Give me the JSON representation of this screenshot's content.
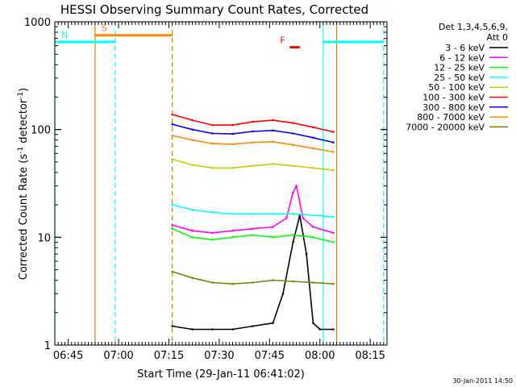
{
  "chart_data": {
    "type": "line",
    "title": "HESSI Observing Summary Count Rates, Corrected",
    "xlabel": "Start Time (29-Jan-11 06:41:02)",
    "ylabel": "Corrected Count Rate (s⁻¹ detector⁻¹)",
    "ylabel_main": "Corrected Count Rate (s",
    "ylabel_sup1": "-1",
    "ylabel_mid": " detector",
    "ylabel_sup2": "-1",
    "ylabel_end": ")",
    "yscale": "log",
    "ylim": [
      1,
      1000
    ],
    "xlim": [
      "06:41",
      "08:20"
    ],
    "x_ticks": [
      "06:45",
      "07:00",
      "07:15",
      "07:30",
      "07:45",
      "08:00",
      "08:15"
    ],
    "y_ticks": [
      "1",
      "10",
      "100",
      "1000"
    ],
    "legend": {
      "position": "right",
      "title_line1": "Det 1,3,4,5,6,9,",
      "title_line2": "Att 0"
    },
    "series": [
      {
        "name": "3 - 6 keV",
        "color": "#000000",
        "x": [
          "07:16",
          "07:22",
          "07:28",
          "07:34",
          "07:40",
          "07:46",
          "07:49",
          "07:52",
          "07:54",
          "07:56",
          "07:58",
          "08:00",
          "08:04"
        ],
        "y": [
          1.5,
          1.4,
          1.4,
          1.4,
          1.5,
          1.6,
          3,
          9,
          16,
          7,
          1.6,
          1.4,
          1.4
        ]
      },
      {
        "name": "6 - 12 keV",
        "color": "#ff00ff",
        "x": [
          "07:16",
          "07:22",
          "07:28",
          "07:34",
          "07:40",
          "07:46",
          "07:50",
          "07:52",
          "07:53",
          "07:55",
          "07:58",
          "08:04"
        ],
        "y": [
          13,
          11.5,
          11,
          11.5,
          12,
          12.5,
          15,
          26,
          30,
          15,
          12.5,
          11
        ]
      },
      {
        "name": "12 - 25 keV",
        "color": "#00ff00",
        "x": [
          "07:16",
          "07:22",
          "07:28",
          "07:34",
          "07:40",
          "07:46",
          "07:52",
          "07:58",
          "08:04"
        ],
        "y": [
          12,
          10,
          9.5,
          10,
          10.5,
          10,
          10.5,
          10,
          9
        ]
      },
      {
        "name": "25 - 50 keV",
        "color": "#00ffff",
        "x": [
          "07:16",
          "07:22",
          "07:28",
          "07:34",
          "07:40",
          "07:46",
          "07:52",
          "07:58",
          "08:04"
        ],
        "y": [
          20,
          18,
          17,
          16.5,
          16.5,
          16.5,
          16.5,
          16,
          15.5
        ]
      },
      {
        "name": "50 - 100 keV",
        "color": "#cccc00",
        "x": [
          "07:16",
          "07:22",
          "07:28",
          "07:34",
          "07:40",
          "07:46",
          "07:52",
          "07:58",
          "08:04"
        ],
        "y": [
          53,
          47,
          44,
          44,
          46,
          48,
          46,
          44,
          42
        ]
      },
      {
        "name": "100 - 300 keV",
        "color": "#ff0000",
        "x": [
          "07:16",
          "07:22",
          "07:28",
          "07:34",
          "07:40",
          "07:46",
          "07:52",
          "07:58",
          "08:04"
        ],
        "y": [
          138,
          122,
          110,
          110,
          118,
          122,
          115,
          105,
          95
        ]
      },
      {
        "name": "300 - 800 keV",
        "color": "#0000ff",
        "x": [
          "07:16",
          "07:22",
          "07:28",
          "07:34",
          "07:40",
          "07:46",
          "07:52",
          "07:58",
          "08:04"
        ],
        "y": [
          112,
          100,
          92,
          91,
          96,
          98,
          92,
          84,
          76
        ]
      },
      {
        "name": "800 - 7000 keV",
        "color": "#ff8800",
        "x": [
          "07:16",
          "07:22",
          "07:28",
          "07:34",
          "07:40",
          "07:46",
          "07:52",
          "07:58",
          "08:04"
        ],
        "y": [
          88,
          80,
          74,
          73,
          76,
          77,
          72,
          67,
          62
        ]
      },
      {
        "name": "7000 - 20000 keV",
        "color": "#808000",
        "x": [
          "07:16",
          "07:22",
          "07:28",
          "07:34",
          "07:40",
          "07:46",
          "07:52",
          "07:58",
          "08:04"
        ],
        "y": [
          4.8,
          4.2,
          3.8,
          3.7,
          3.8,
          4.0,
          3.9,
          3.8,
          3.7
        ]
      }
    ],
    "annotations": [
      {
        "label": "S",
        "color": "#ff8800",
        "x_start": "06:53",
        "x_end": "07:16",
        "y": 750
      },
      {
        "label": "N",
        "color": "#00ffff",
        "x_start": "06:41",
        "x_end": "06:59",
        "y": 650
      },
      {
        "label": "",
        "color": "#00ffff",
        "x_start": "08:01",
        "x_end": "08:19",
        "y": 650
      },
      {
        "label": "F",
        "color": "#ff0000",
        "x_start": "07:51",
        "x_end": "07:54",
        "y": 580
      }
    ],
    "vertical_lines": [
      {
        "x": "06:41",
        "color": "#00ffff",
        "style": "solid"
      },
      {
        "x": "06:53",
        "color": "#cc8800",
        "style": "solid"
      },
      {
        "x": "06:59",
        "color": "#00ffff",
        "style": "dashed"
      },
      {
        "x": "07:16",
        "color": "#cc8800",
        "style": "dashed"
      },
      {
        "x": "08:01",
        "color": "#00ffff",
        "style": "solid"
      },
      {
        "x": "08:05",
        "color": "#cc8800",
        "style": "solid"
      },
      {
        "x": "08:19",
        "color": "#00ffff",
        "style": "dashed"
      }
    ],
    "grid": false
  },
  "footer": {
    "timestamp": "30-Jan-2011 14:50"
  }
}
